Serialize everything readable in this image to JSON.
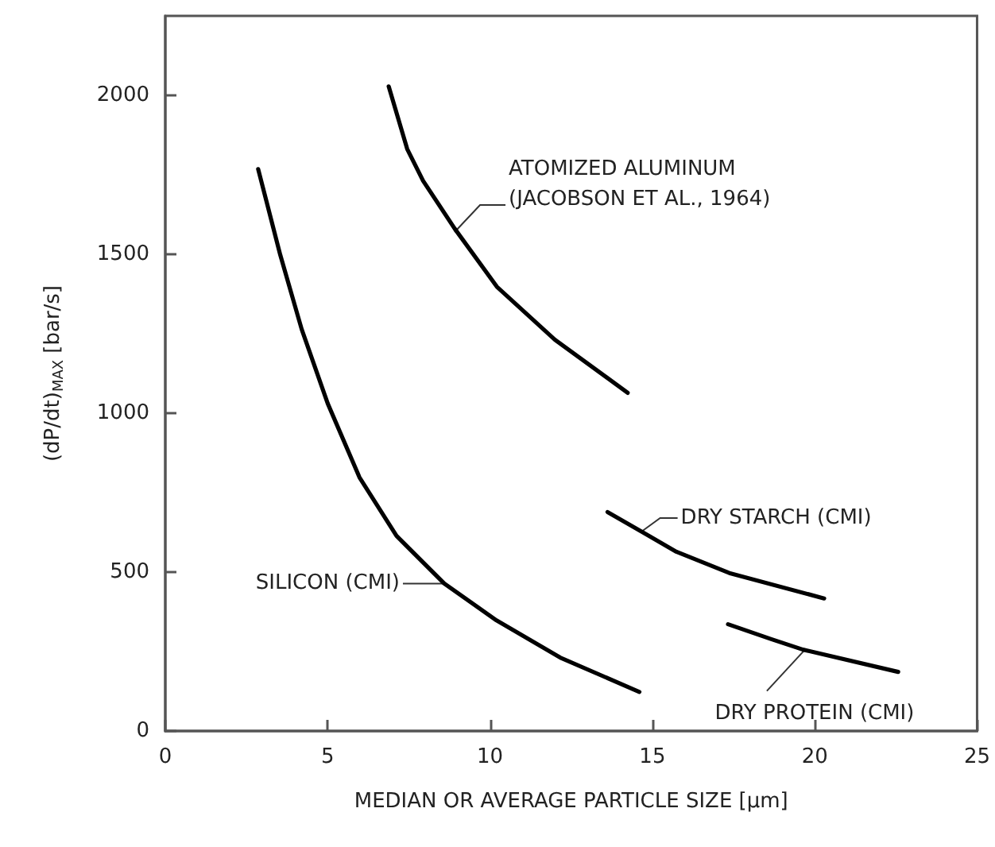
{
  "chart_data": {
    "type": "line",
    "xlabel": "MEDIAN OR AVERAGE PARTICLE SIZE [µm]",
    "ylabel": "(dP/dt)$_{MAX}$ [bar/s]",
    "xlim": [
      0,
      25
    ],
    "xticks": [
      0,
      5,
      10,
      15,
      20,
      25
    ],
    "ylim": [
      0,
      2250
    ],
    "yticks": [
      0,
      500,
      1000,
      1500,
      2000
    ],
    "marker": "none",
    "line_style": "solid",
    "series": [
      {
        "color": "#000000",
        "x": [
          2.86,
          3.54,
          4.2,
          5.0,
          5.98,
          7.12,
          8.59,
          10.2,
          12.16,
          14.6
        ],
        "values": [
          1768,
          1498,
          1264,
          1031,
          798,
          614,
          464,
          348,
          231,
          123
        ]
      },
      {
        "color": "#000000",
        "x": [
          6.88,
          7.45,
          7.94,
          8.91,
          10.21,
          12.0,
          14.24
        ],
        "values": [
          2028,
          1831,
          1731,
          1581,
          1398,
          1231,
          1064
        ]
      },
      {
        "color": "#000000",
        "x": [
          13.62,
          14.76,
          15.74,
          17.37,
          20.29
        ],
        "values": [
          689,
          622,
          564,
          497,
          417
        ]
      },
      {
        "color": "#000000",
        "x": [
          17.33,
          18.66,
          19.64,
          22.57
        ],
        "values": [
          336,
          289,
          256,
          186
        ]
      }
    ],
    "annotations": [
      {
        "text": "SILICON (CMI)",
        "x": 8.59,
        "y": 464
      },
      {
        "text": "ATOMIZED ALUMINUM\n(JACOBSON ET AL., 1964)",
        "x": 8.91,
        "y": 1570
      },
      {
        "text": "DRY STARCH (CMI)",
        "x": 14.7,
        "y": 630
      },
      {
        "text": "DRY PROTEIN (CMI)",
        "x": 19.7,
        "y": 256
      }
    ]
  }
}
